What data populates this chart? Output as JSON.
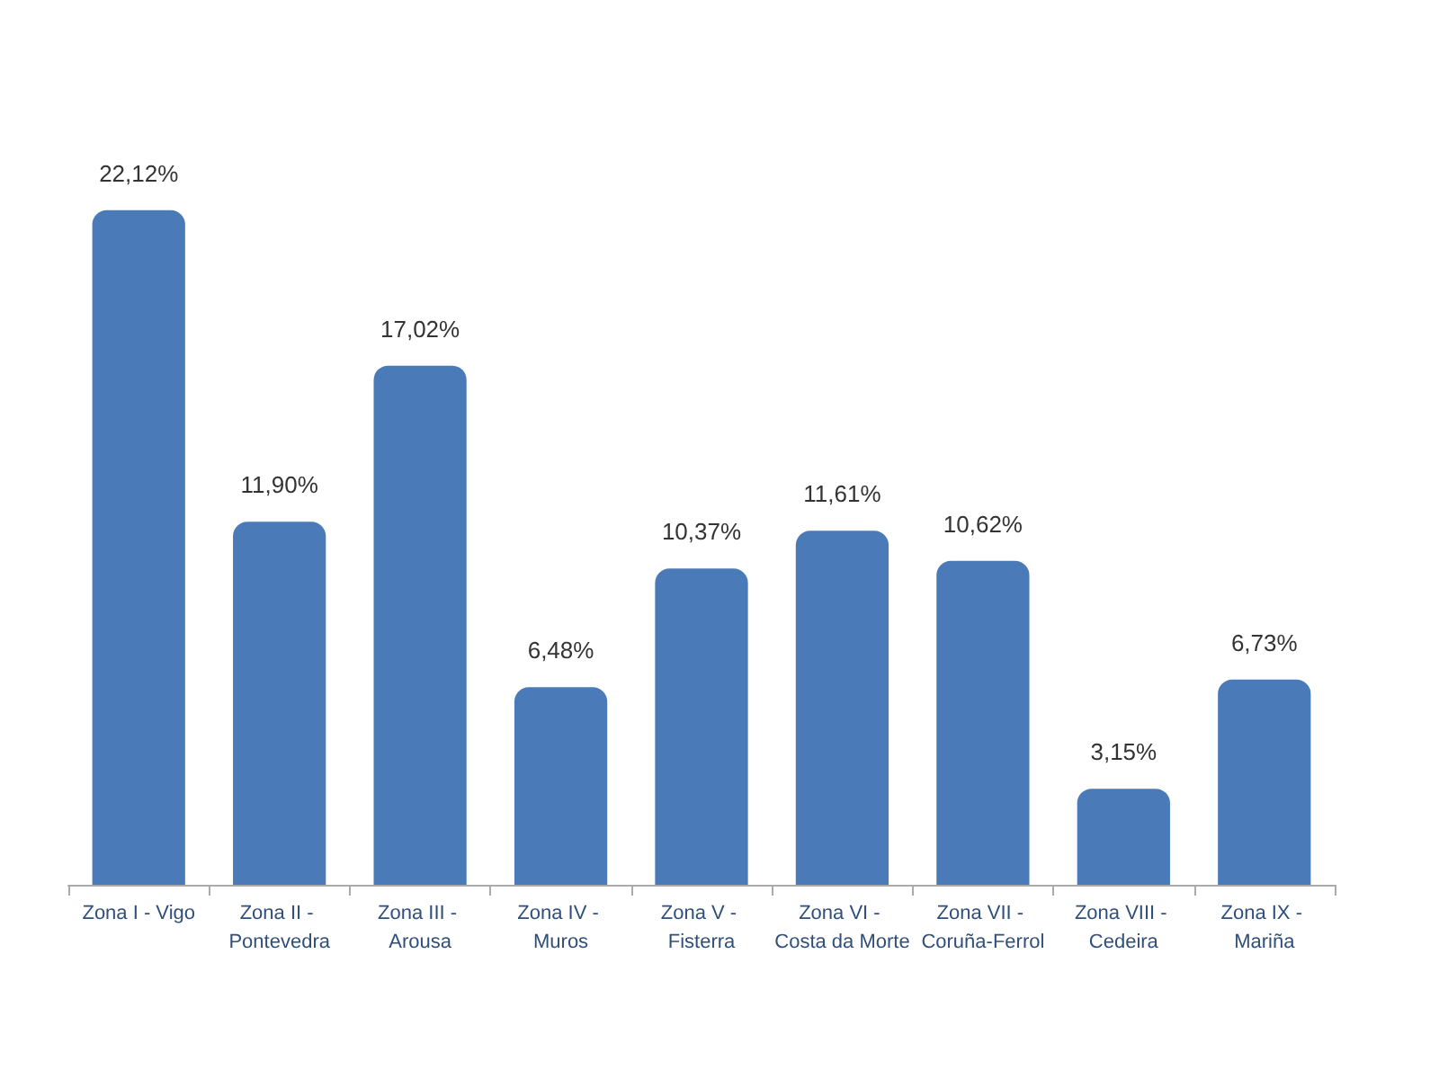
{
  "chart_data": {
    "type": "bar",
    "categories": [
      "Zona I - Vigo",
      "Zona II - Pontevedra",
      "Zona III - Arousa",
      "Zona IV - Muros",
      "Zona V - Fisterra",
      "Zona VI - Costa da Morte",
      "Zona VII - Coruña-Ferrol",
      "Zona VIII - Cedeira",
      "Zona IX - Mariña"
    ],
    "values": [
      22.12,
      11.9,
      17.02,
      6.48,
      10.37,
      11.61,
      10.62,
      3.15,
      6.73
    ],
    "value_labels": [
      "22,12%",
      "11,90%",
      "17,02%",
      "6,48%",
      "10,37%",
      "11,61%",
      "10,62%",
      "3,15%",
      "6,73%"
    ],
    "color": "#4a7ab8"
  }
}
